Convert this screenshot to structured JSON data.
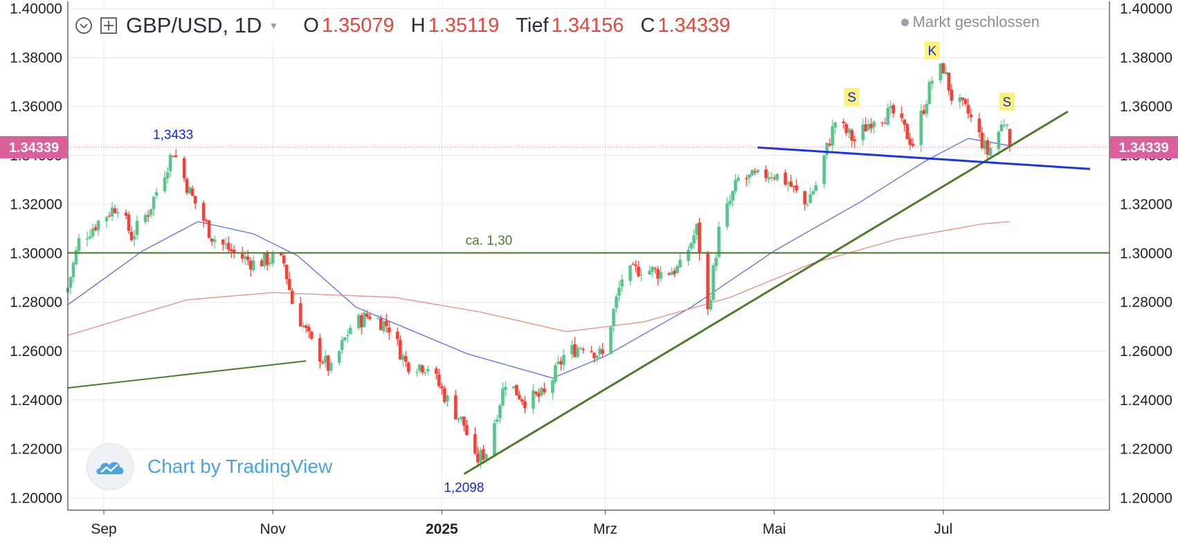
{
  "header": {
    "symbol": "GBP/USD, 1D",
    "open_label": "O",
    "open_value": "1.35079",
    "high_label": "H",
    "high_value": "1.35119",
    "low_label": "Tief",
    "low_value": "1.34156",
    "close_label": "C",
    "close_value": "1.34339"
  },
  "status": {
    "text": "Markt geschlossen"
  },
  "branding": {
    "text": "Chart by TradingView"
  },
  "colors": {
    "up": "#5ec28d",
    "down": "#e8453c",
    "ma_short": "#5b6ee6",
    "ma_long": "#ee8a84",
    "trend": "#4e7a2c",
    "neckline": "#1c34e0",
    "price_tag": "#d9609b",
    "annotation_blue": "#1428d8"
  },
  "chart_data": {
    "type": "candlestick",
    "instrument": "GBP/USD",
    "interval": "1D",
    "ylim": [
      1.195,
      1.403
    ],
    "yticks": [
      "1.40000",
      "1.38000",
      "1.36000",
      "1.34000",
      "1.32000",
      "1.30000",
      "1.28000",
      "1.26000",
      "1.24000",
      "1.22000",
      "1.20000"
    ],
    "xlim": [
      "2024-08-19",
      "2025-08-30"
    ],
    "xticks": [
      {
        "label": "Sep",
        "date": "2024-09-01"
      },
      {
        "label": "Nov",
        "date": "2024-11-01"
      },
      {
        "label": "2025",
        "date": "2025-01-01",
        "bold": true
      },
      {
        "label": "Mrz",
        "date": "2025-03-01"
      },
      {
        "label": "Mai",
        "date": "2025-05-01"
      },
      {
        "label": "Jul",
        "date": "2025-07-01"
      }
    ],
    "last_price": "1.34339",
    "anchors": [
      {
        "date": "2024-08-19",
        "close": 1.286
      },
      {
        "date": "2024-08-23",
        "close": 1.305
      },
      {
        "date": "2024-08-30",
        "close": 1.313
      },
      {
        "date": "2024-09-06",
        "close": 1.32
      },
      {
        "date": "2024-09-11",
        "close": 1.307
      },
      {
        "date": "2024-09-17",
        "close": 1.317
      },
      {
        "date": "2024-09-26",
        "close": 1.342
      },
      {
        "date": "2024-10-02",
        "close": 1.325
      },
      {
        "date": "2024-10-10",
        "close": 1.307
      },
      {
        "date": "2024-10-18",
        "close": 1.3
      },
      {
        "date": "2024-10-25",
        "close": 1.296
      },
      {
        "date": "2024-11-01",
        "close": 1.298
      },
      {
        "date": "2024-11-05",
        "close": 1.296
      },
      {
        "date": "2024-11-08",
        "close": 1.28
      },
      {
        "date": "2024-11-15",
        "close": 1.263
      },
      {
        "date": "2024-11-22",
        "close": 1.252
      },
      {
        "date": "2024-11-29",
        "close": 1.27
      },
      {
        "date": "2024-12-06",
        "close": 1.275
      },
      {
        "date": "2024-12-13",
        "close": 1.27
      },
      {
        "date": "2024-12-19",
        "close": 1.255
      },
      {
        "date": "2024-12-27",
        "close": 1.254
      },
      {
        "date": "2025-01-03",
        "close": 1.24
      },
      {
        "date": "2025-01-09",
        "close": 1.23
      },
      {
        "date": "2025-01-13",
        "close": 1.215
      },
      {
        "date": "2025-01-17",
        "close": 1.219
      },
      {
        "date": "2025-01-24",
        "close": 1.248
      },
      {
        "date": "2025-01-31",
        "close": 1.24
      },
      {
        "date": "2025-02-07",
        "close": 1.242
      },
      {
        "date": "2025-02-14",
        "close": 1.258
      },
      {
        "date": "2025-02-21",
        "close": 1.263
      },
      {
        "date": "2025-02-28",
        "close": 1.258
      },
      {
        "date": "2025-03-07",
        "close": 1.29
      },
      {
        "date": "2025-03-14",
        "close": 1.294
      },
      {
        "date": "2025-03-21",
        "close": 1.292
      },
      {
        "date": "2025-03-28",
        "close": 1.294
      },
      {
        "date": "2025-04-03",
        "close": 1.31
      },
      {
        "date": "2025-04-07",
        "close": 1.276
      },
      {
        "date": "2025-04-11",
        "close": 1.309
      },
      {
        "date": "2025-04-18",
        "close": 1.33
      },
      {
        "date": "2025-04-25",
        "close": 1.331
      },
      {
        "date": "2025-04-30",
        "close": 1.333
      },
      {
        "date": "2025-05-06",
        "close": 1.329
      },
      {
        "date": "2025-05-12",
        "close": 1.32
      },
      {
        "date": "2025-05-16",
        "close": 1.328
      },
      {
        "date": "2025-05-23",
        "close": 1.354
      },
      {
        "date": "2025-05-30",
        "close": 1.346
      },
      {
        "date": "2025-06-06",
        "close": 1.356
      },
      {
        "date": "2025-06-13",
        "close": 1.357
      },
      {
        "date": "2025-06-20",
        "close": 1.345
      },
      {
        "date": "2025-06-27",
        "close": 1.371
      },
      {
        "date": "2025-07-01",
        "close": 1.376
      },
      {
        "date": "2025-07-04",
        "close": 1.364
      },
      {
        "date": "2025-07-10",
        "close": 1.357
      },
      {
        "date": "2025-07-17",
        "close": 1.341
      },
      {
        "date": "2025-07-22",
        "close": 1.352
      },
      {
        "date": "2025-07-24",
        "close": 1.356
      },
      {
        "date": "2025-07-25",
        "close": 1.3434
      }
    ],
    "moving_averages": [
      {
        "color": "#5b6ee6",
        "points": [
          [
            "2024-08-19",
            1.279
          ],
          [
            "2024-09-15",
            1.301
          ],
          [
            "2024-10-05",
            1.313
          ],
          [
            "2024-10-25",
            1.308
          ],
          [
            "2024-11-10",
            1.299
          ],
          [
            "2024-12-01",
            1.278
          ],
          [
            "2025-01-10",
            1.259
          ],
          [
            "2025-02-10",
            1.249
          ],
          [
            "2025-03-01",
            1.258
          ],
          [
            "2025-04-01",
            1.278
          ],
          [
            "2025-05-01",
            1.301
          ],
          [
            "2025-06-01",
            1.321
          ],
          [
            "2025-06-25",
            1.338
          ],
          [
            "2025-07-10",
            1.347
          ],
          [
            "2025-07-25",
            1.344
          ]
        ]
      },
      {
        "color": "#ee8a84",
        "points": [
          [
            "2024-08-19",
            1.2665
          ],
          [
            "2024-10-01",
            1.281
          ],
          [
            "2024-11-01",
            1.284
          ],
          [
            "2024-12-15",
            1.282
          ],
          [
            "2025-01-15",
            1.276
          ],
          [
            "2025-02-15",
            1.268
          ],
          [
            "2025-03-15",
            1.272
          ],
          [
            "2025-04-15",
            1.282
          ],
          [
            "2025-05-15",
            1.296
          ],
          [
            "2025-06-15",
            1.306
          ],
          [
            "2025-07-15",
            1.312
          ],
          [
            "2025-07-25",
            1.313
          ]
        ]
      }
    ],
    "trendlines": [
      {
        "color": "#4e7a2c",
        "width": 2,
        "from": [
          "2024-08-19",
          1.245
        ],
        "to": [
          "2024-11-13",
          1.256
        ]
      },
      {
        "color": "#4e7a2c",
        "width": 3,
        "from": [
          "2025-01-09",
          1.2098
        ],
        "to": [
          "2025-08-15",
          1.358
        ]
      },
      {
        "color": "#4e7a2c",
        "width": 2,
        "from": [
          "2024-08-19",
          1.3002
        ],
        "to": [
          "2025-08-30",
          1.3002
        ]
      },
      {
        "color": "#1c34e0",
        "width": 3,
        "from": [
          "2025-04-25",
          1.3433
        ],
        "to": [
          "2025-08-23",
          1.3345
        ]
      }
    ],
    "annotations": [
      {
        "text": "1,3433",
        "date": "2024-09-26",
        "value": 1.3433,
        "color": "#1428d8",
        "box": false,
        "pos": "above"
      },
      {
        "text": "1,2098",
        "date": "2025-01-09",
        "value": 1.2098,
        "color": "#1428d8",
        "box": false,
        "pos": "below"
      },
      {
        "text": "ca. 1,30",
        "date": "2025-01-18",
        "value": 1.3002,
        "color": "#4e7a2c",
        "box": false,
        "pos": "above"
      },
      {
        "text": "S",
        "date": "2025-05-29",
        "value": 1.364,
        "color": "#1428d8",
        "box": true
      },
      {
        "text": "K",
        "date": "2025-06-27",
        "value": 1.383,
        "color": "#1428d8",
        "box": true
      },
      {
        "text": "S",
        "date": "2025-07-24",
        "value": 1.362,
        "color": "#1428d8",
        "box": true
      }
    ]
  }
}
